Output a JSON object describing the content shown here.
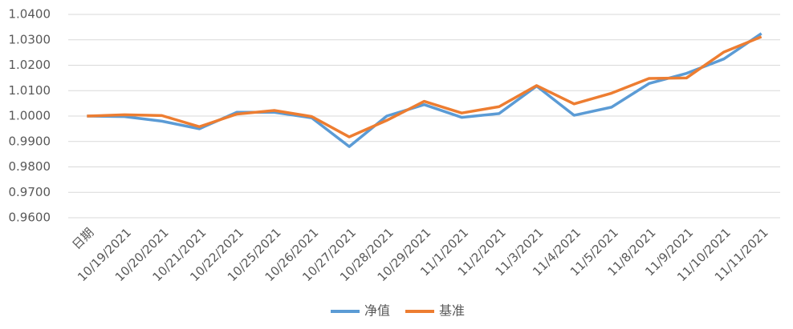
{
  "chart_data": {
    "type": "line",
    "categories": [
      "日期",
      "10/19/2021",
      "10/20/2021",
      "10/21/2021",
      "10/22/2021",
      "10/25/2021",
      "10/26/2021",
      "10/27/2021",
      "10/28/2021",
      "10/29/2021",
      "11/1/2021",
      "11/2/2021",
      "11/3/2021",
      "11/4/2021",
      "11/5/2021",
      "11/8/2021",
      "11/9/2021",
      "11/10/2021",
      "11/11/2021"
    ],
    "series": [
      {
        "name": "净值",
        "color": "#5b9bd5",
        "values": [
          1.0,
          0.9998,
          0.998,
          0.995,
          1.0015,
          1.0015,
          0.9993,
          0.988,
          1.0,
          1.0045,
          0.9995,
          1.001,
          1.0118,
          1.0003,
          1.0035,
          1.0128,
          1.0168,
          1.0225,
          1.0325
        ]
      },
      {
        "name": "基准",
        "color": "#ed7d31",
        "values": [
          1.0,
          1.0005,
          1.0002,
          0.9958,
          1.0008,
          1.0022,
          0.9998,
          0.9918,
          0.9983,
          1.0058,
          1.0012,
          1.0037,
          1.012,
          1.0048,
          1.009,
          1.0148,
          1.015,
          1.0252,
          1.0312
        ]
      }
    ],
    "ylim": [
      0.96,
      1.04
    ],
    "yticks": [
      {
        "value": 0.96,
        "label": "0.9600"
      },
      {
        "value": 0.97,
        "label": "0.9700"
      },
      {
        "value": 0.98,
        "label": "0.9800"
      },
      {
        "value": 0.99,
        "label": "0.9900"
      },
      {
        "value": 1.0,
        "label": "1.0000"
      },
      {
        "value": 1.01,
        "label": "1.0100"
      },
      {
        "value": 1.02,
        "label": "1.0200"
      },
      {
        "value": 1.03,
        "label": "1.0300"
      },
      {
        "value": 1.04,
        "label": "1.0400"
      }
    ],
    "grid": true,
    "legend": "bottom"
  }
}
